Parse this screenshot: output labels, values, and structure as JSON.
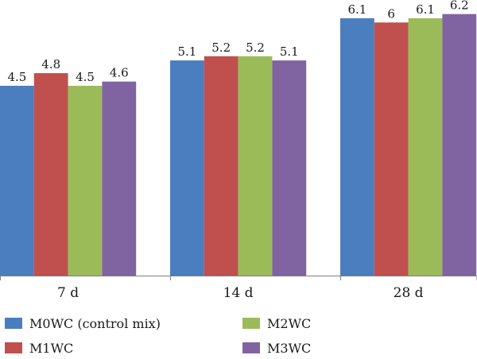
{
  "chart_data": {
    "type": "bar",
    "categories": [
      "7 d",
      "14 d",
      "28 d"
    ],
    "series": [
      {
        "name": "M0WC (control mix)",
        "color": "#4a7ebf",
        "values": [
          4.5,
          5.1,
          6.1
        ]
      },
      {
        "name": "M1WC",
        "color": "#c0504d",
        "values": [
          4.8,
          5.2,
          6
        ]
      },
      {
        "name": "M2WC",
        "color": "#9bbb59",
        "values": [
          4.5,
          5.2,
          6.1
        ]
      },
      {
        "name": "M3WC",
        "color": "#8064a2",
        "values": [
          4.6,
          5.1,
          6.2
        ]
      }
    ],
    "title": "",
    "xlabel": "",
    "ylabel": "",
    "ylim": [
      0,
      6.5
    ],
    "grid": false,
    "y_axis_visible": false,
    "legend_position": "bottom"
  }
}
